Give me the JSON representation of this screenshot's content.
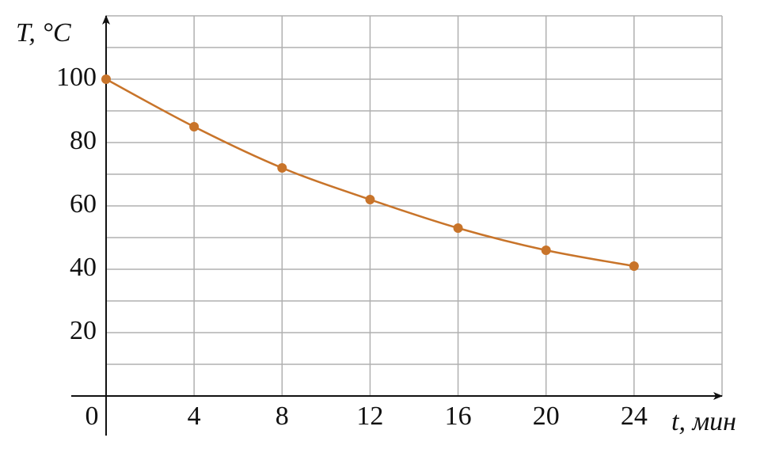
{
  "chart_data": {
    "type": "line",
    "y_label": "T, °C",
    "x_label": "t, мин",
    "x": [
      0,
      4,
      8,
      12,
      16,
      20,
      24
    ],
    "series": [
      {
        "color": "#c8742a",
        "values": [
          100,
          85,
          72,
          62,
          53,
          46,
          41
        ]
      }
    ],
    "xlim": [
      0,
      28
    ],
    "ylim": [
      0,
      120
    ],
    "xticks": [
      0,
      4,
      8,
      12,
      16,
      20,
      24
    ],
    "yticks": [
      20,
      40,
      60,
      80,
      100
    ],
    "xgrid": [
      4,
      8,
      12,
      16,
      20,
      24,
      28
    ],
    "ygrid": [
      10,
      20,
      30,
      40,
      50,
      60,
      70,
      80,
      90,
      100,
      110,
      120
    ]
  }
}
